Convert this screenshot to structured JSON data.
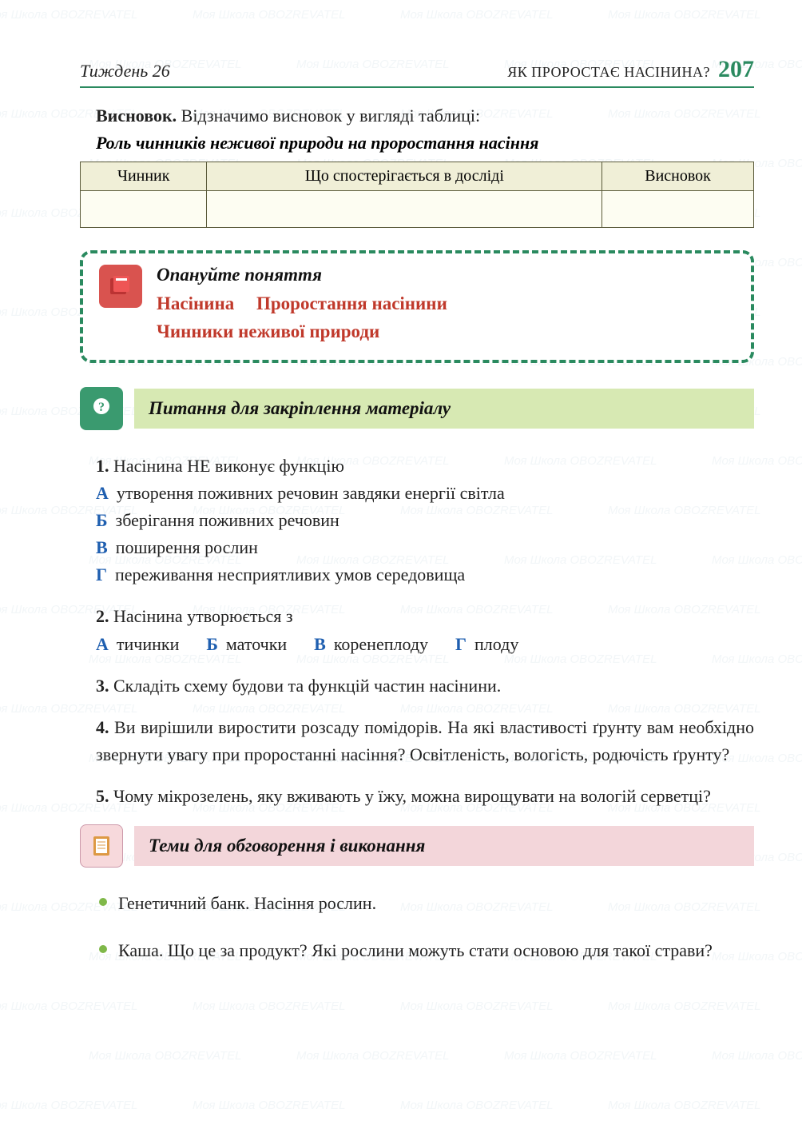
{
  "header": {
    "week": "Тиждень 26",
    "topic": "ЯК ПРОРОСТАЄ НАСІНИНА?",
    "page_number": "207"
  },
  "colors": {
    "accent_green": "#2a8a5f",
    "table_header_bg": "#f0efd7",
    "table_border": "#5a5a3a",
    "term_red": "#c0392b",
    "letter_blue": "#1f5fb0",
    "bar_green": "#d7e9b3",
    "bar_pink": "#f3d6da",
    "bullet_green": "#7fb849",
    "icon_red": "#d9534f",
    "icon_green_bg": "#3a9a6f"
  },
  "conclusion": {
    "prefix": "Висновок.",
    "text": " Відзначимо висновок у вигляді таблиці:",
    "subtitle": "Роль чинників неживої природи на проростання насіння"
  },
  "table": {
    "columns": [
      "Чинник",
      "Що спостерігається в досліді",
      "Висновок"
    ],
    "rows": [
      [
        "",
        "",
        ""
      ]
    ]
  },
  "concepts": {
    "heading": "Опануйте поняття",
    "terms": [
      "Насінина",
      "Проростання насінини",
      "Чинники неживої природи"
    ]
  },
  "questions_section": {
    "title": "Питання для закріплення матеріалу",
    "items": [
      {
        "num": "1.",
        "stem": "Насінина НЕ виконує функцію",
        "layout": "vert",
        "options": [
          {
            "letter": "А",
            "text": "утворення поживних речовин завдяки енергії світла"
          },
          {
            "letter": "Б",
            "text": "зберігання поживних речовин"
          },
          {
            "letter": "В",
            "text": "поширення рослин"
          },
          {
            "letter": "Г",
            "text": "переживання несприятливих умов середовища"
          }
        ]
      },
      {
        "num": "2.",
        "stem": "Насінина утворюється з",
        "layout": "horz",
        "options": [
          {
            "letter": "А",
            "text": "тичинки"
          },
          {
            "letter": "Б",
            "text": "маточки"
          },
          {
            "letter": "В",
            "text": "коренеплоду"
          },
          {
            "letter": "Г",
            "text": "плоду"
          }
        ]
      },
      {
        "num": "3.",
        "stem": "Складіть схему будови та функцій частин насінини.",
        "layout": "none",
        "options": []
      },
      {
        "num": "4.",
        "stem": "Ви вирішили виростити розсаду помідорів. На які властивості ґрунту вам необхідно звернути увагу при проростанні насіння? Освітленість, вологість, родючість ґрунту?",
        "layout": "none",
        "options": []
      },
      {
        "num": "5.",
        "stem": "Чому мікрозелень, яку вживають у їжу, можна вирощувати на вологій серветці?",
        "layout": "none",
        "options": []
      }
    ]
  },
  "discussion": {
    "title": "Теми для обговорення і виконання",
    "items": [
      "Генетичний банк. Насіння рослин.",
      "Каша. Що це за продукт? Які рослини можуть стати основою для такої страви?"
    ]
  },
  "watermark": {
    "text": "Моя Школа   OBOZREVATEL"
  }
}
